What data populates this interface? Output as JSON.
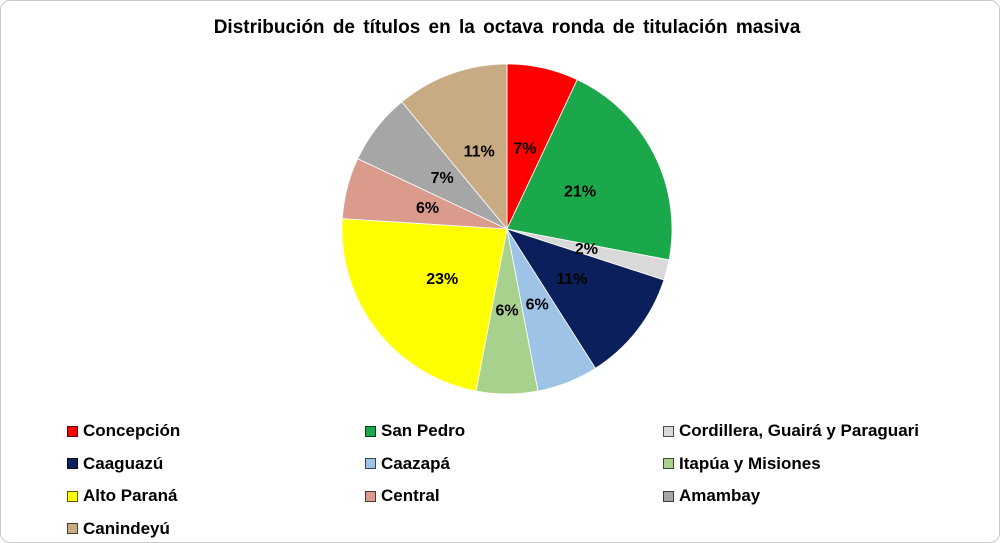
{
  "chart_data": {
    "type": "pie",
    "title": "Distribución de títulos en la octava ronda de titulación masiva",
    "categories": [
      "Concepción",
      "San Pedro",
      "Cordillera, Guairá y Paraguari",
      "Caaguazú",
      "Caazapá",
      "Itapúa y Misiones",
      "Alto Paraná",
      "Central",
      "Amambay",
      "Canindeyú"
    ],
    "values": [
      7,
      21,
      2,
      11,
      6,
      6,
      23,
      6,
      7,
      11
    ],
    "labels": [
      "7%",
      "21%",
      "2%",
      "11%",
      "6%",
      "6%",
      "23%",
      "6%",
      "7%",
      "11%"
    ],
    "colors": [
      "#ff0000",
      "#1aa84a",
      "#d9d9d9",
      "#0b1f5c",
      "#9dc3e6",
      "#a9d18e",
      "#ffff00",
      "#da9a8c",
      "#a6a6a6",
      "#c9ab83"
    ],
    "legend_position": "bottom",
    "legend_columns": 3
  }
}
